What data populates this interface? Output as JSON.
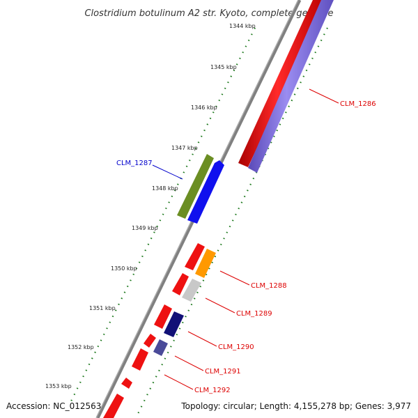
{
  "title": "Clostridium botulinum A2 str. Kyoto, complete genome",
  "footer": {
    "accession": "Accession: NC_012563",
    "summary": "Topology: circular; Length: 4,155,278 bp; Genes: 3,977"
  },
  "ticks": [
    "1344 kbp",
    "1345 kbp",
    "1346 kbp",
    "1347 kbp",
    "1348 kbp",
    "1349 kbp",
    "1350 kbp",
    "1351 kbp",
    "1352 kbp",
    "1353 kbp"
  ],
  "genes": [
    {
      "label": "CLM_1286",
      "color": "#dd0000"
    },
    {
      "label": "CLM_1287",
      "color": "#0000cc"
    },
    {
      "label": "CLM_1288",
      "color": "#dd0000"
    },
    {
      "label": "CLM_1289",
      "color": "#dd0000"
    },
    {
      "label": "CLM_1290",
      "color": "#dd0000"
    },
    {
      "label": "CLM_1291",
      "color": "#dd0000"
    },
    {
      "label": "CLM_1292",
      "color": "#dd0000"
    }
  ],
  "colors": {
    "backbone": "#808080",
    "tick": "#1f7a1f",
    "red": "#ee1111",
    "purple": "#7d6ad8",
    "olive": "#6b8e23",
    "blue": "#1010ee",
    "orange": "#ff9900",
    "gray": "#c8c8c8",
    "navy": "#111177",
    "slate": "#4a4a99"
  }
}
